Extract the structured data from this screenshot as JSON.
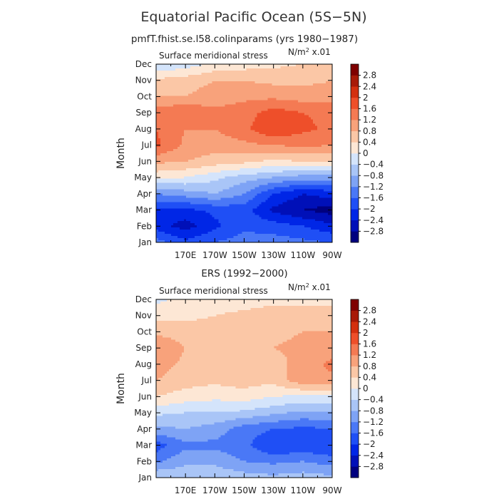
{
  "title": "Equatorial Pacific Ocean (5S−5N)",
  "chart_data": [
    {
      "type": "heatmap",
      "title": "pmfT.fhist.se.l58.colinparams (yrs 1980−1987)",
      "field_label": "Surface meridional stress",
      "units_label": "N/m",
      "units_sup": "2",
      "units_suffix": " x.01",
      "ylabel": "Month",
      "xlabel": "",
      "x_ticks": [
        "170E",
        "170W",
        "150W",
        "130W",
        "110W",
        "90W"
      ],
      "x_tick_lon": [
        170,
        190,
        210,
        230,
        250,
        270
      ],
      "xlim": [
        150,
        270
      ],
      "y_ticks": [
        "Jan",
        "Feb",
        "Mar",
        "Apr",
        "May",
        "Jun",
        "Jul",
        "Aug",
        "Sep",
        "Oct",
        "Nov",
        "Dec"
      ],
      "lon": [
        150,
        170,
        190,
        210,
        230,
        250,
        270
      ],
      "z": [
        [
          -1.4,
          -1.9,
          -1.6,
          -1.4,
          -1.4,
          -1.5,
          -1.6
        ],
        [
          -2.2,
          -2.6,
          -2.1,
          -1.7,
          -1.8,
          -2.0,
          -2.3
        ],
        [
          -2.1,
          -2.1,
          -1.9,
          -1.8,
          -2.5,
          -2.8,
          -3.0
        ],
        [
          -1.2,
          -1.0,
          -0.8,
          -1.2,
          -2.0,
          -2.4,
          -2.2
        ],
        [
          0.1,
          0.0,
          -0.3,
          -0.6,
          -0.8,
          -1.0,
          -1.0
        ],
        [
          0.9,
          0.8,
          0.6,
          0.5,
          0.3,
          0.4,
          0.4
        ],
        [
          1.7,
          1.1,
          1.0,
          1.1,
          1.2,
          1.3,
          1.2
        ],
        [
          1.6,
          1.2,
          1.2,
          1.5,
          2.0,
          1.7,
          1.5
        ],
        [
          1.4,
          1.6,
          1.3,
          1.4,
          1.8,
          1.6,
          1.5
        ],
        [
          0.8,
          0.8,
          1.0,
          1.1,
          1.1,
          1.0,
          1.0
        ],
        [
          0.5,
          0.6,
          0.8,
          0.8,
          0.7,
          0.7,
          0.8
        ],
        [
          -0.4,
          -0.2,
          0.1,
          0.2,
          0.3,
          0.4,
          0.5
        ]
      ]
    },
    {
      "type": "heatmap",
      "title": "ERS (1992−2000)",
      "field_label": "Surface meridional stress",
      "units_label": "N/m",
      "units_sup": "2",
      "units_suffix": " x.01",
      "ylabel": "Month",
      "xlabel": "",
      "x_ticks": [
        "170E",
        "170W",
        "150W",
        "130W",
        "110W",
        "90W"
      ],
      "x_tick_lon": [
        170,
        190,
        210,
        230,
        250,
        270
      ],
      "xlim": [
        150,
        270
      ],
      "y_ticks": [
        "Jan",
        "Feb",
        "Mar",
        "Apr",
        "May",
        "Jun",
        "Jul",
        "Aug",
        "Sep",
        "Oct",
        "Nov",
        "Dec"
      ],
      "lon": [
        150,
        170,
        190,
        210,
        230,
        250,
        270
      ],
      "z": [
        [
          -0.4,
          -0.5,
          -0.5,
          -0.6,
          -0.7,
          -0.6,
          -0.7
        ],
        [
          -1.3,
          -0.9,
          -0.9,
          -1.2,
          -1.3,
          -1.2,
          -1.4
        ],
        [
          -1.8,
          -1.3,
          -1.3,
          -1.5,
          -2.0,
          -1.9,
          -2.0
        ],
        [
          -0.9,
          -0.8,
          -1.0,
          -1.4,
          -1.6,
          -1.7,
          -1.6
        ],
        [
          -0.3,
          -0.4,
          -0.4,
          -0.5,
          -0.7,
          -0.9,
          -0.8
        ],
        [
          0.4,
          0.2,
          0.1,
          0.2,
          0.0,
          -0.1,
          -0.1
        ],
        [
          0.8,
          0.6,
          0.5,
          0.6,
          0.5,
          1.1,
          1.1
        ],
        [
          1.0,
          0.7,
          0.6,
          0.7,
          0.6,
          1.0,
          1.3
        ],
        [
          1.2,
          0.8,
          0.6,
          0.7,
          0.8,
          0.9,
          1.0
        ],
        [
          0.7,
          0.6,
          0.6,
          0.7,
          0.7,
          0.8,
          0.8
        ],
        [
          0.3,
          0.3,
          0.4,
          0.5,
          0.6,
          0.6,
          0.6
        ],
        [
          -0.1,
          0.1,
          0.2,
          0.2,
          0.3,
          0.3,
          0.3
        ]
      ]
    }
  ],
  "colorbar": {
    "levels": [
      -3.2,
      -2.8,
      -2.4,
      -2.0,
      -1.6,
      -1.2,
      -0.8,
      -0.4,
      0,
      0.4,
      0.8,
      1.2,
      1.6,
      2.0,
      2.4,
      2.8,
      3.2
    ],
    "labels": [
      "−2.8",
      "−2.4",
      "−2",
      "−1.6",
      "−1.2",
      "−0.8",
      "−0.4",
      "0",
      "0.4",
      "0.8",
      "1.2",
      "1.6",
      "2",
      "2.4",
      "2.8"
    ],
    "colors": [
      "#00007f",
      "#0010b8",
      "#0026e6",
      "#1f4ff5",
      "#4a78f6",
      "#7ea3f5",
      "#a9c5f7",
      "#d4e4fb",
      "#fde7d5",
      "#fbc7a6",
      "#f8a27b",
      "#f47a53",
      "#ee4f2a",
      "#d3300f",
      "#a81a08",
      "#7f0000"
    ]
  }
}
